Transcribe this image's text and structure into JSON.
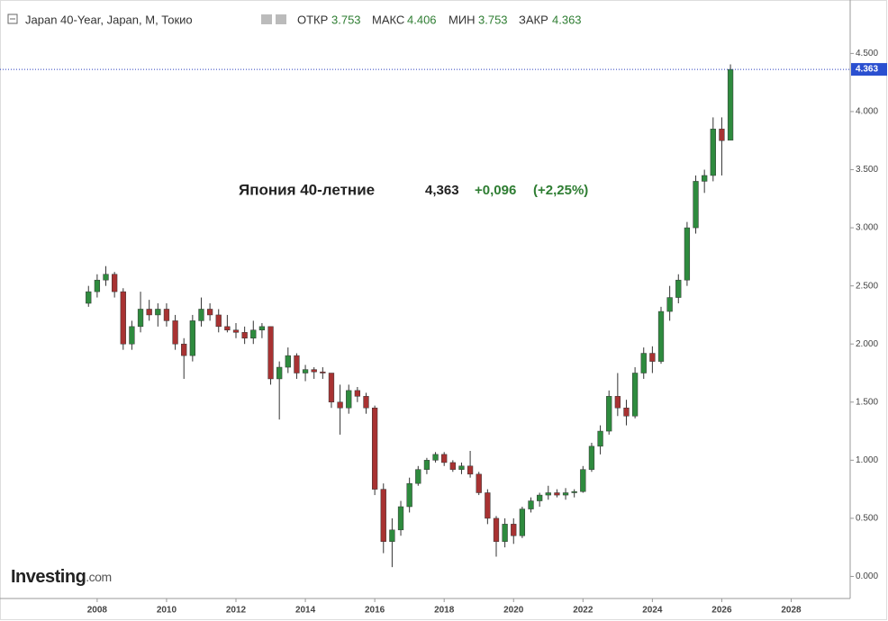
{
  "header": {
    "title": "Japan 40-Year, Japan, M, Токио",
    "open_label": "ОТКР",
    "open": "3.753",
    "high_label": "МАКС",
    "high": "4.406",
    "low_label": "МИН",
    "low": "3.753",
    "close_label": "ЗАКР",
    "close": "4.363"
  },
  "logo": {
    "text": "Investing",
    "suffix": ".com"
  },
  "chart_data": {
    "type": "candlestick",
    "annotation": {
      "name": "Япония 40-летние",
      "value": "4,363",
      "change": "+0,096",
      "change_pct": "(+2,25%)"
    },
    "last_price": {
      "value": 4.363,
      "label": "4.363"
    },
    "up_color": "#2e8b3e",
    "down_color": "#a83232",
    "xlim": [
      2005.2,
      2029.7
    ],
    "ylim": [
      -0.19,
      4.96
    ],
    "xticks": [
      2008,
      2010,
      2012,
      2014,
      2016,
      2018,
      2020,
      2022,
      2024,
      2026,
      2028
    ],
    "yticks": [
      {
        "value": 0,
        "label": "0.000"
      },
      {
        "value": 0.5,
        "label": "0.500"
      },
      {
        "value": 1,
        "label": "1.000"
      },
      {
        "value": 1.5,
        "label": "1.500"
      },
      {
        "value": 2,
        "label": "2.000"
      },
      {
        "value": 2.5,
        "label": "2.500"
      },
      {
        "value": 3,
        "label": "3.000"
      },
      {
        "value": 3.5,
        "label": "3.500"
      },
      {
        "value": 4,
        "label": "4.000"
      },
      {
        "value": 4.5,
        "label": "4.500"
      }
    ],
    "x": [
      2007.75,
      2008,
      2008.25,
      2008.5,
      2008.75,
      2009,
      2009.25,
      2009.5,
      2009.75,
      2010,
      2010.25,
      2010.5,
      2010.75,
      2011,
      2011.25,
      2011.5,
      2011.75,
      2012,
      2012.25,
      2012.5,
      2012.75,
      2013,
      2013.25,
      2013.5,
      2013.75,
      2014,
      2014.25,
      2014.5,
      2014.75,
      2015,
      2015.25,
      2015.5,
      2015.75,
      2016,
      2016.25,
      2016.5,
      2016.75,
      2017,
      2017.25,
      2017.5,
      2017.75,
      2018,
      2018.25,
      2018.5,
      2018.75,
      2019,
      2019.25,
      2019.5,
      2019.75,
      2020,
      2020.25,
      2020.5,
      2020.75,
      2021,
      2021.25,
      2021.5,
      2021.75,
      2022,
      2022.25,
      2022.5,
      2022.75,
      2023,
      2023.25,
      2023.5,
      2023.75,
      2024,
      2024.25,
      2024.5,
      2024.75,
      2025,
      2025.25,
      2025.5,
      2025.75,
      2026,
      2026.25
    ],
    "open": [
      2.35,
      2.45,
      2.55,
      2.6,
      2.45,
      2.0,
      2.15,
      2.3,
      2.25,
      2.3,
      2.2,
      2.0,
      1.9,
      2.2,
      2.3,
      2.25,
      2.15,
      2.12,
      2.1,
      2.05,
      2.12,
      2.15,
      1.7,
      1.8,
      1.9,
      1.75,
      1.78,
      1.76,
      1.75,
      1.5,
      1.45,
      1.6,
      1.55,
      1.45,
      0.75,
      0.3,
      0.4,
      0.6,
      0.8,
      0.92,
      1.0,
      1.05,
      0.98,
      0.92,
      0.95,
      0.88,
      0.72,
      0.5,
      0.3,
      0.45,
      0.35,
      0.58,
      0.65,
      0.7,
      0.72,
      0.7,
      0.72,
      0.73,
      0.92,
      1.12,
      1.25,
      1.55,
      1.45,
      1.38,
      1.75,
      1.92,
      1.85,
      2.28,
      2.4,
      2.55,
      3.0,
      3.4,
      3.45,
      3.85,
      3.753
    ],
    "high": [
      2.5,
      2.6,
      2.67,
      2.62,
      2.48,
      2.2,
      2.45,
      2.38,
      2.35,
      2.35,
      2.25,
      2.05,
      2.25,
      2.4,
      2.35,
      2.3,
      2.25,
      2.18,
      2.15,
      2.2,
      2.18,
      2.15,
      1.85,
      1.97,
      1.92,
      1.82,
      1.8,
      1.8,
      1.75,
      1.65,
      1.65,
      1.63,
      1.58,
      1.47,
      0.8,
      0.5,
      0.65,
      0.85,
      0.95,
      1.02,
      1.07,
      1.07,
      1.0,
      0.98,
      1.08,
      0.9,
      0.75,
      0.52,
      0.5,
      0.5,
      0.6,
      0.68,
      0.72,
      0.78,
      0.75,
      0.76,
      0.75,
      0.95,
      1.15,
      1.3,
      1.6,
      1.75,
      1.52,
      1.8,
      1.97,
      1.98,
      2.32,
      2.5,
      2.6,
      3.05,
      3.45,
      3.5,
      3.95,
      3.95,
      4.406
    ],
    "low": [
      2.32,
      2.4,
      2.5,
      2.4,
      1.95,
      1.95,
      2.1,
      2.2,
      2.15,
      2.15,
      1.95,
      1.7,
      1.85,
      2.15,
      2.2,
      2.1,
      2.1,
      2.05,
      2.0,
      2.0,
      2.05,
      1.65,
      1.35,
      1.75,
      1.7,
      1.68,
      1.7,
      1.7,
      1.45,
      1.22,
      1.4,
      1.5,
      1.4,
      0.7,
      0.2,
      0.08,
      0.35,
      0.55,
      0.78,
      0.88,
      0.98,
      0.95,
      0.9,
      0.88,
      0.85,
      0.7,
      0.45,
      0.17,
      0.25,
      0.28,
      0.33,
      0.55,
      0.6,
      0.66,
      0.68,
      0.66,
      0.68,
      0.72,
      0.9,
      1.05,
      1.22,
      1.38,
      1.3,
      1.36,
      1.7,
      1.75,
      1.83,
      2.2,
      2.35,
      2.5,
      2.95,
      3.3,
      3.4,
      3.45,
      3.753
    ],
    "close": [
      2.45,
      2.55,
      2.6,
      2.45,
      2.0,
      2.15,
      2.3,
      2.25,
      2.3,
      2.2,
      2.0,
      1.9,
      2.2,
      2.3,
      2.25,
      2.15,
      2.12,
      2.1,
      2.05,
      2.12,
      2.15,
      1.7,
      1.8,
      1.9,
      1.75,
      1.78,
      1.76,
      1.75,
      1.5,
      1.45,
      1.6,
      1.55,
      1.45,
      0.75,
      0.3,
      0.4,
      0.6,
      0.8,
      0.92,
      1.0,
      1.05,
      0.98,
      0.92,
      0.95,
      0.88,
      0.72,
      0.5,
      0.3,
      0.45,
      0.35,
      0.58,
      0.65,
      0.7,
      0.72,
      0.7,
      0.72,
      0.73,
      0.92,
      1.12,
      1.25,
      1.55,
      1.45,
      1.38,
      1.75,
      1.92,
      1.85,
      2.28,
      2.4,
      2.55,
      3.0,
      3.4,
      3.45,
      3.85,
      3.75,
      4.363
    ]
  }
}
